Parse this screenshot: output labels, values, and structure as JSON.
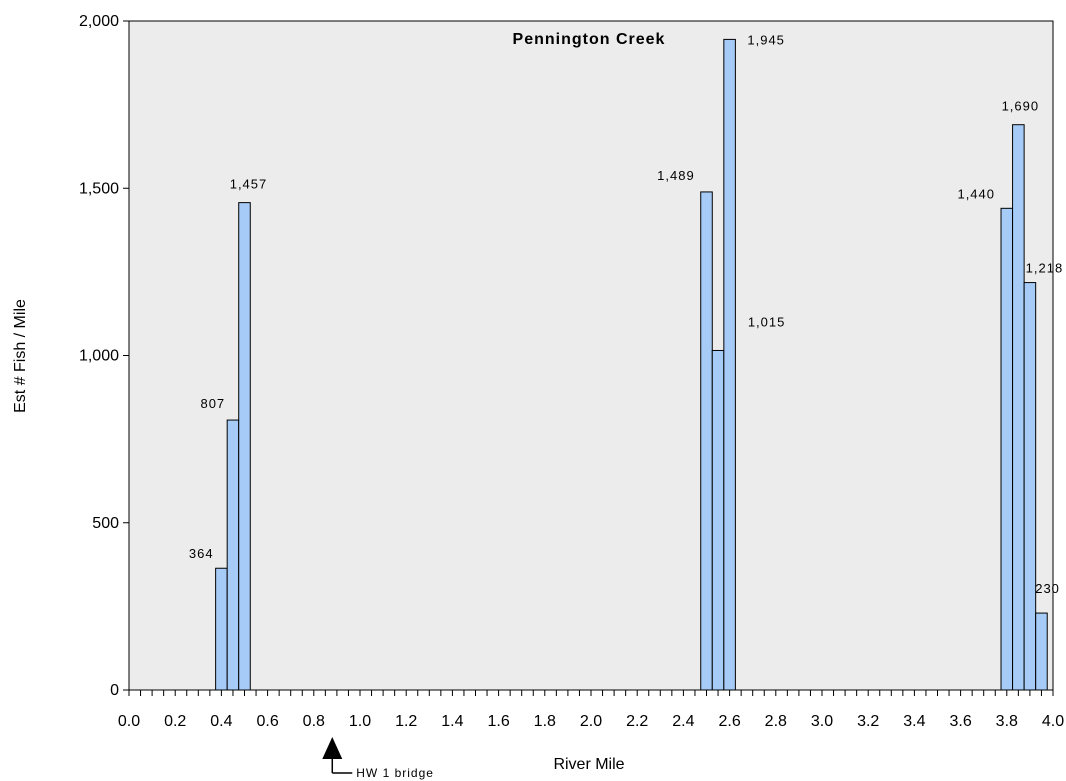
{
  "colors": {
    "plot_background": "#ececec",
    "bar_fill": "#a6cbf7",
    "bar_stroke": "#000000",
    "axis": "#000000"
  },
  "chart_data": {
    "type": "bar",
    "title": "Pennington Creek",
    "xlabel": "River Mile",
    "ylabel": "Est # Fish / Mile",
    "xlim": [
      0.0,
      4.0
    ],
    "ylim": [
      0,
      2000
    ],
    "bar_width": 0.05,
    "grid": false,
    "legend": "none",
    "x_ticks": [
      "0.0",
      "0.2",
      "0.4",
      "0.6",
      "0.8",
      "1.0",
      "1.2",
      "1.4",
      "1.6",
      "1.8",
      "2.0",
      "2.2",
      "2.4",
      "2.6",
      "2.8",
      "3.0",
      "3.2",
      "3.4",
      "3.6",
      "3.8",
      "4.0"
    ],
    "y_ticks": [
      "0",
      "500",
      "1,000",
      "1,500",
      "2,000"
    ],
    "points": [
      {
        "x": 0.4,
        "value": 364,
        "label": "364"
      },
      {
        "x": 0.45,
        "value": 807,
        "label": "807"
      },
      {
        "x": 0.5,
        "value": 1457,
        "label": "1,457"
      },
      {
        "x": 2.5,
        "value": 1489,
        "label": "1,489"
      },
      {
        "x": 2.55,
        "value": 1015,
        "label": "1,015"
      },
      {
        "x": 2.6,
        "value": 1945,
        "label": "1,945"
      },
      {
        "x": 3.8,
        "value": 1440,
        "label": "1,440"
      },
      {
        "x": 3.85,
        "value": 1690,
        "label": "1,690"
      },
      {
        "x": 3.9,
        "value": 1218,
        "label": "1,218"
      },
      {
        "x": 3.95,
        "value": 230,
        "label": "230"
      }
    ],
    "annotations": [
      {
        "text": "HW 1 bridge",
        "x": 0.88,
        "marker": "up-arrow"
      }
    ]
  }
}
